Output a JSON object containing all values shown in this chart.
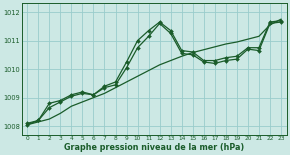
{
  "bg_color": "#cce8e4",
  "grid_color": "#99cccc",
  "line_color": "#1a5c2a",
  "marker_color": "#1a5c2a",
  "xlabel": "Graphe pression niveau de la mer (hPa)",
  "ylim": [
    1007.7,
    1012.3
  ],
  "xlim": [
    -0.5,
    23.5
  ],
  "yticks": [
    1008,
    1009,
    1010,
    1011,
    1012
  ],
  "xticks": [
    0,
    1,
    2,
    3,
    4,
    5,
    6,
    7,
    8,
    9,
    10,
    11,
    12,
    13,
    14,
    15,
    16,
    17,
    18,
    19,
    20,
    21,
    22,
    23
  ],
  "line1_x": [
    0,
    1,
    2,
    3,
    4,
    5,
    6,
    7,
    8,
    9,
    10,
    11,
    12,
    13,
    14,
    15,
    16,
    17,
    18,
    19,
    20,
    21,
    22,
    23
  ],
  "line1_y": [
    1008.05,
    1008.15,
    1008.25,
    1008.45,
    1008.7,
    1008.85,
    1009.0,
    1009.15,
    1009.35,
    1009.55,
    1009.75,
    1009.95,
    1010.15,
    1010.3,
    1010.45,
    1010.58,
    1010.68,
    1010.78,
    1010.88,
    1010.95,
    1011.05,
    1011.15,
    1011.55,
    1011.75
  ],
  "line2_x": [
    0,
    1,
    2,
    3,
    4,
    5,
    6,
    7,
    8,
    9,
    10,
    11,
    12,
    13,
    14,
    15,
    16,
    17,
    18,
    19,
    20,
    21,
    22,
    23
  ],
  "line2_y": [
    1008.1,
    1008.2,
    1008.8,
    1008.9,
    1009.1,
    1009.2,
    1009.1,
    1009.4,
    1009.55,
    1010.25,
    1011.0,
    1011.35,
    1011.65,
    1011.35,
    1010.65,
    1010.6,
    1010.3,
    1010.3,
    1010.4,
    1010.45,
    1010.75,
    1010.75,
    1011.65,
    1011.7
  ],
  "line3_x": [
    0,
    1,
    2,
    3,
    4,
    5,
    6,
    7,
    8,
    9,
    10,
    11,
    12,
    13,
    14,
    15,
    16,
    17,
    18,
    19,
    20,
    21,
    22,
    23
  ],
  "line3_y": [
    1008.05,
    1008.2,
    1008.65,
    1008.85,
    1009.05,
    1009.15,
    1009.1,
    1009.35,
    1009.45,
    1010.05,
    1010.75,
    1011.15,
    1011.6,
    1011.25,
    1010.55,
    1010.5,
    1010.25,
    1010.2,
    1010.3,
    1010.35,
    1010.7,
    1010.65,
    1011.6,
    1011.65
  ]
}
